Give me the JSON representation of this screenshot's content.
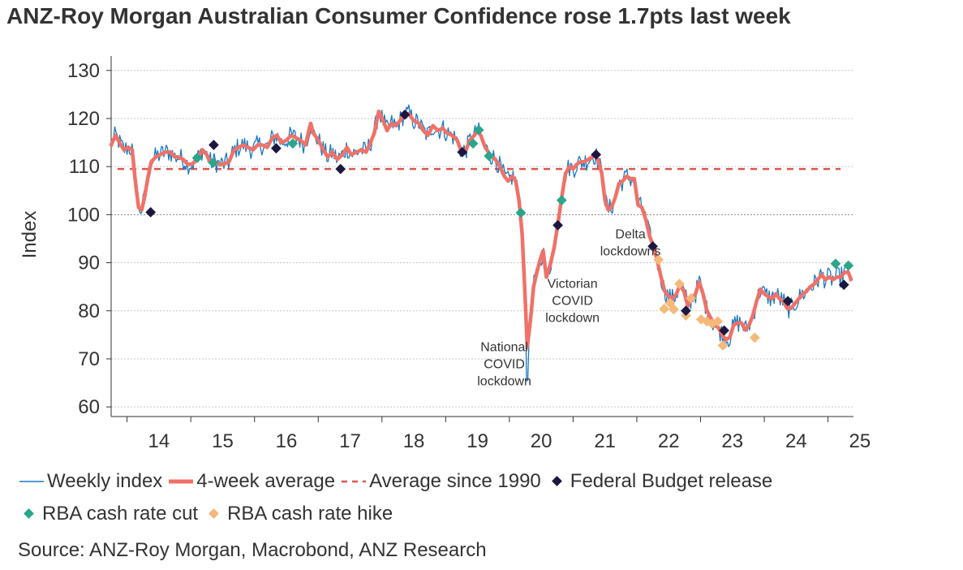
{
  "title": "ANZ-Roy Morgan Australian Consumer Confidence rose 1.7pts last week",
  "source": "Source: ANZ-Roy Morgan, Macrobond, ANZ Research",
  "colors": {
    "weekly": "#1a78c2",
    "avg4": "#f07167",
    "avg_since_1990": "#e0554f",
    "budget": "#1b1740",
    "cut": "#2aa68a",
    "hike": "#f5b97a"
  },
  "legend": {
    "weekly": "Weekly index",
    "avg4": "4-week average",
    "avg1990": "Average since 1990",
    "budget": "Federal Budget release",
    "cut": "RBA cash rate cut",
    "hike": "RBA cash rate hike"
  },
  "chart_data": {
    "type": "line",
    "ylabel": "Index",
    "xlabel": "",
    "ylim": [
      58,
      133
    ],
    "xlim": [
      2013.75,
      2025.4
    ],
    "y_ticks": [
      60,
      70,
      80,
      90,
      100,
      110,
      120,
      130
    ],
    "x_ticks": [
      "14",
      "15",
      "16",
      "17",
      "18",
      "19",
      "20",
      "21",
      "22",
      "23",
      "24",
      "25"
    ],
    "average_since_1990": 109.5,
    "grid": true,
    "legend_position": "bottom",
    "series": [
      {
        "name": "4-week average",
        "points": [
          [
            2013.75,
            114.5
          ],
          [
            2013.82,
            116.5
          ],
          [
            2013.88,
            115.0
          ],
          [
            2013.95,
            113.5
          ],
          [
            2014.02,
            114.0
          ],
          [
            2014.08,
            113.5
          ],
          [
            2014.13,
            107.0
          ],
          [
            2014.18,
            101.5
          ],
          [
            2014.23,
            101.0
          ],
          [
            2014.28,
            104.0
          ],
          [
            2014.33,
            108.0
          ],
          [
            2014.38,
            111.0
          ],
          [
            2014.45,
            112.0
          ],
          [
            2014.52,
            112.5
          ],
          [
            2014.6,
            113.0
          ],
          [
            2014.68,
            113.0
          ],
          [
            2014.75,
            112.0
          ],
          [
            2014.8,
            112.0
          ],
          [
            2014.88,
            111.5
          ],
          [
            2014.95,
            110.5
          ],
          [
            2015.02,
            110.5
          ],
          [
            2015.1,
            111.5
          ],
          [
            2015.18,
            113.5
          ],
          [
            2015.25,
            112.5
          ],
          [
            2015.3,
            111.0
          ],
          [
            2015.38,
            111.0
          ],
          [
            2015.45,
            110.5
          ],
          [
            2015.52,
            110.5
          ],
          [
            2015.6,
            111.0
          ],
          [
            2015.68,
            113.5
          ],
          [
            2015.75,
            114.0
          ],
          [
            2015.82,
            114.5
          ],
          [
            2015.9,
            114.0
          ],
          [
            2015.98,
            113.5
          ],
          [
            2016.05,
            114.5
          ],
          [
            2016.12,
            114.5
          ],
          [
            2016.2,
            114.0
          ],
          [
            2016.28,
            116.0
          ],
          [
            2016.35,
            116.5
          ],
          [
            2016.42,
            115.0
          ],
          [
            2016.5,
            115.5
          ],
          [
            2016.58,
            116.5
          ],
          [
            2016.65,
            116.0
          ],
          [
            2016.72,
            115.5
          ],
          [
            2016.8,
            114.5
          ],
          [
            2016.88,
            119.0
          ],
          [
            2016.92,
            117.0
          ],
          [
            2017.0,
            115.5
          ],
          [
            2017.08,
            113.5
          ],
          [
            2017.15,
            112.0
          ],
          [
            2017.22,
            113.0
          ],
          [
            2017.3,
            111.5
          ],
          [
            2017.38,
            112.5
          ],
          [
            2017.45,
            114.0
          ],
          [
            2017.52,
            112.5
          ],
          [
            2017.6,
            113.0
          ],
          [
            2017.68,
            113.5
          ],
          [
            2017.75,
            113.0
          ],
          [
            2017.82,
            115.0
          ],
          [
            2017.88,
            117.0
          ],
          [
            2017.95,
            121.5
          ],
          [
            2018.02,
            119.5
          ],
          [
            2018.08,
            117.5
          ],
          [
            2018.15,
            119.0
          ],
          [
            2018.22,
            118.5
          ],
          [
            2018.28,
            119.5
          ],
          [
            2018.35,
            121.0
          ],
          [
            2018.42,
            121.0
          ],
          [
            2018.5,
            119.5
          ],
          [
            2018.58,
            119.0
          ],
          [
            2018.65,
            117.5
          ],
          [
            2018.72,
            116.5
          ],
          [
            2018.8,
            118.5
          ],
          [
            2018.88,
            117.5
          ],
          [
            2018.95,
            118.0
          ],
          [
            2019.02,
            117.0
          ],
          [
            2019.1,
            116.5
          ],
          [
            2019.18,
            115.5
          ],
          [
            2019.25,
            113.0
          ],
          [
            2019.32,
            113.5
          ],
          [
            2019.38,
            115.5
          ],
          [
            2019.45,
            116.5
          ],
          [
            2019.5,
            117.5
          ],
          [
            2019.55,
            116.5
          ],
          [
            2019.62,
            114.0
          ],
          [
            2019.7,
            112.5
          ],
          [
            2019.78,
            111.5
          ],
          [
            2019.85,
            110.0
          ],
          [
            2019.92,
            108.0
          ],
          [
            2019.98,
            107.0
          ],
          [
            2020.05,
            108.0
          ],
          [
            2020.1,
            107.0
          ],
          [
            2020.15,
            103.0
          ],
          [
            2020.2,
            96.0
          ],
          [
            2020.24,
            85.0
          ],
          [
            2020.28,
            72.5
          ],
          [
            2020.33,
            78.0
          ],
          [
            2020.38,
            85.0
          ],
          [
            2020.43,
            88.0
          ],
          [
            2020.48,
            90.5
          ],
          [
            2020.53,
            92.5
          ],
          [
            2020.58,
            87.0
          ],
          [
            2020.64,
            89.5
          ],
          [
            2020.7,
            93.0
          ],
          [
            2020.76,
            98.0
          ],
          [
            2020.82,
            103.5
          ],
          [
            2020.88,
            108.5
          ],
          [
            2020.94,
            110.0
          ],
          [
            2021.0,
            109.5
          ],
          [
            2021.06,
            110.5
          ],
          [
            2021.12,
            111.0
          ],
          [
            2021.18,
            111.0
          ],
          [
            2021.24,
            111.5
          ],
          [
            2021.3,
            112.0
          ],
          [
            2021.35,
            112.5
          ],
          [
            2021.4,
            111.0
          ],
          [
            2021.45,
            108.5
          ],
          [
            2021.5,
            103.0
          ],
          [
            2021.55,
            101.0
          ],
          [
            2021.6,
            101.5
          ],
          [
            2021.66,
            103.5
          ],
          [
            2021.72,
            106.5
          ],
          [
            2021.78,
            107.0
          ],
          [
            2021.84,
            108.0
          ],
          [
            2021.9,
            107.5
          ],
          [
            2021.96,
            107.5
          ],
          [
            2022.02,
            102.0
          ],
          [
            2022.08,
            101.5
          ],
          [
            2022.14,
            99.0
          ],
          [
            2022.2,
            95.5
          ],
          [
            2022.26,
            93.5
          ],
          [
            2022.32,
            90.5
          ],
          [
            2022.38,
            87.0
          ],
          [
            2022.44,
            84.0
          ],
          [
            2022.5,
            83.0
          ],
          [
            2022.56,
            82.5
          ],
          [
            2022.62,
            83.5
          ],
          [
            2022.68,
            85.5
          ],
          [
            2022.74,
            84.0
          ],
          [
            2022.8,
            81.0
          ],
          [
            2022.86,
            82.5
          ],
          [
            2022.92,
            83.5
          ],
          [
            2022.98,
            86.0
          ],
          [
            2023.04,
            83.5
          ],
          [
            2023.1,
            80.0
          ],
          [
            2023.16,
            78.5
          ],
          [
            2023.22,
            77.0
          ],
          [
            2023.28,
            76.5
          ],
          [
            2023.34,
            75.0
          ],
          [
            2023.4,
            74.0
          ],
          [
            2023.46,
            74.5
          ],
          [
            2023.52,
            77.0
          ],
          [
            2023.58,
            77.5
          ],
          [
            2023.64,
            77.5
          ],
          [
            2023.7,
            76.0
          ],
          [
            2023.76,
            77.0
          ],
          [
            2023.82,
            79.0
          ],
          [
            2023.88,
            82.0
          ],
          [
            2023.94,
            84.5
          ],
          [
            2024.0,
            83.5
          ],
          [
            2024.06,
            83.0
          ],
          [
            2024.12,
            82.5
          ],
          [
            2024.18,
            83.5
          ],
          [
            2024.24,
            82.5
          ],
          [
            2024.3,
            82.0
          ],
          [
            2024.36,
            80.5
          ],
          [
            2024.42,
            80.5
          ],
          [
            2024.48,
            81.5
          ],
          [
            2024.54,
            82.5
          ],
          [
            2024.6,
            83.5
          ],
          [
            2024.66,
            84.0
          ],
          [
            2024.72,
            85.0
          ],
          [
            2024.78,
            85.5
          ],
          [
            2024.84,
            86.5
          ],
          [
            2024.9,
            87.5
          ],
          [
            2024.96,
            86.5
          ],
          [
            2025.02,
            87.0
          ],
          [
            2025.08,
            86.5
          ],
          [
            2025.14,
            87.0
          ],
          [
            2025.2,
            87.0
          ],
          [
            2025.26,
            88.0
          ],
          [
            2025.32,
            88.0
          ],
          [
            2025.36,
            86.5
          ]
        ]
      }
    ],
    "federal_budget_release": [
      [
        2014.37,
        100.5
      ],
      [
        2015.36,
        114.5
      ],
      [
        2016.34,
        113.8
      ],
      [
        2017.35,
        109.5
      ],
      [
        2018.36,
        120.8
      ],
      [
        2019.26,
        113.0
      ],
      [
        2020.76,
        97.8
      ],
      [
        2021.36,
        112.5
      ],
      [
        2022.25,
        93.4
      ],
      [
        2022.77,
        80.0
      ],
      [
        2023.37,
        75.9
      ],
      [
        2024.37,
        82.0
      ],
      [
        2025.25,
        85.4
      ]
    ],
    "rba_cash_rate_cut": [
      [
        2015.1,
        111.8
      ],
      [
        2015.35,
        110.8
      ],
      [
        2016.34,
        113.8
      ],
      [
        2016.6,
        114.8
      ],
      [
        2019.43,
        114.8
      ],
      [
        2019.52,
        117.6
      ],
      [
        2019.68,
        112.2
      ],
      [
        2020.18,
        100.4
      ],
      [
        2020.82,
        103.0
      ],
      [
        2025.12,
        89.8
      ],
      [
        2025.32,
        89.4
      ]
    ],
    "rba_cash_rate_hike": [
      [
        2022.34,
        90.6
      ],
      [
        2022.43,
        80.4
      ],
      [
        2022.52,
        81.6
      ],
      [
        2022.58,
        80.3
      ],
      [
        2022.67,
        85.6
      ],
      [
        2022.77,
        79.0
      ],
      [
        2022.85,
        82.6
      ],
      [
        2023.01,
        78.2
      ],
      [
        2023.1,
        77.8
      ],
      [
        2023.18,
        77.3
      ],
      [
        2023.27,
        77.8
      ],
      [
        2023.35,
        72.8
      ],
      [
        2023.85,
        74.4
      ]
    ],
    "annotations": [
      {
        "id": "national",
        "lines": [
          "National",
          "COVID",
          "lockdown"
        ],
        "x": 2019.92,
        "y": 71.6
      },
      {
        "id": "victorian",
        "lines": [
          "Victorian",
          "COVID",
          "lockdown"
        ],
        "x": 2020.99,
        "y": 84.8
      },
      {
        "id": "delta",
        "lines": [
          "Delta",
          "lockdowns"
        ],
        "x": 2021.9,
        "y": 95.1
      }
    ]
  }
}
